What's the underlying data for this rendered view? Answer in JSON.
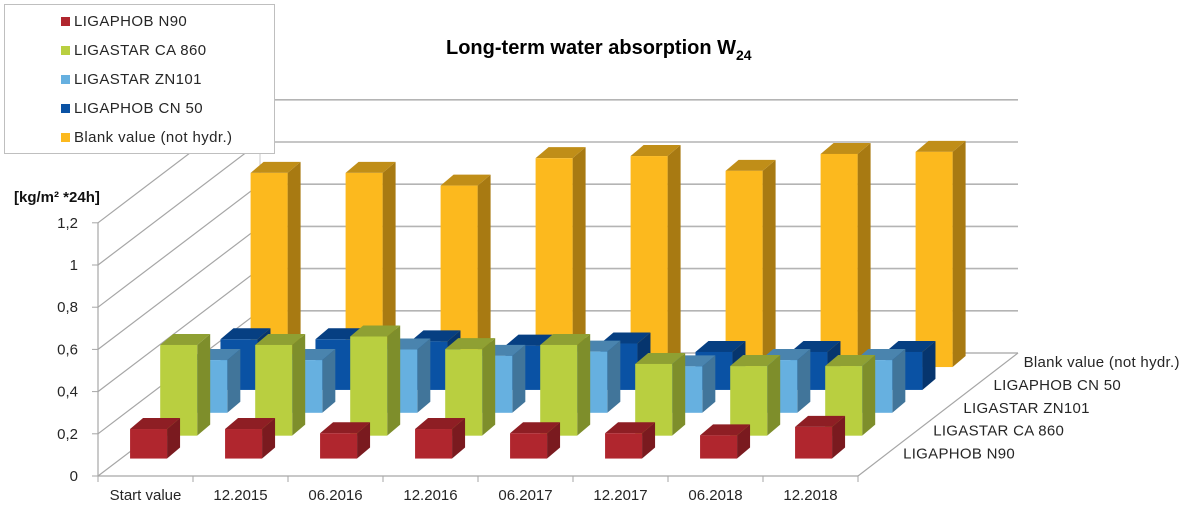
{
  "chart_data": {
    "type": "bar",
    "variant": "3d-column-depth",
    "title": "Long-term water absorption W",
    "title_subscript": "24",
    "ylabel": "[kg/m² *24h]",
    "xlabel": "",
    "ylim": [
      0,
      1.2
    ],
    "yticks": [
      "0",
      "0,2",
      "0,4",
      "0,6",
      "0,8",
      "1",
      "1,2"
    ],
    "ytick_values": [
      0,
      0.2,
      0.4,
      0.6,
      0.8,
      1.0,
      1.2
    ],
    "grid": true,
    "legend_position": "top-left",
    "categories": [
      "Start value",
      "12.2015",
      "06.2016",
      "12.2016",
      "06.2017",
      "12.2017",
      "06.2018",
      "12.2018"
    ],
    "series": [
      {
        "name": "LIGAPHOB N90",
        "color": "#B0262E",
        "side": "#7A1A1F",
        "top": "#8E1E24",
        "values": [
          0.14,
          0.14,
          0.12,
          0.14,
          0.12,
          0.12,
          0.11,
          0.15
        ]
      },
      {
        "name": "LIGASTAR CA 860",
        "color": "#B9CF40",
        "side": "#7E8E2B",
        "top": "#8FA033",
        "values": [
          0.43,
          0.43,
          0.47,
          0.41,
          0.43,
          0.34,
          0.33,
          0.33
        ]
      },
      {
        "name": "LIGASTAR ZN101",
        "color": "#66B0E0",
        "side": "#41759A",
        "top": "#4A84AE",
        "values": [
          0.25,
          0.25,
          0.3,
          0.27,
          0.29,
          0.22,
          0.25,
          0.25
        ]
      },
      {
        "name": "LIGAPHOB CN 50",
        "color": "#0A52A4",
        "side": "#06356E",
        "top": "#063F82",
        "values": [
          0.24,
          0.24,
          0.23,
          0.21,
          0.22,
          0.18,
          0.18,
          0.18
        ]
      },
      {
        "name": "Blank value (not hydr.)",
        "color": "#FCB91E",
        "side": "#A87A12",
        "top": "#C08E18",
        "values": [
          0.92,
          0.92,
          0.86,
          0.99,
          1.0,
          0.93,
          1.01,
          1.02
        ]
      }
    ]
  }
}
